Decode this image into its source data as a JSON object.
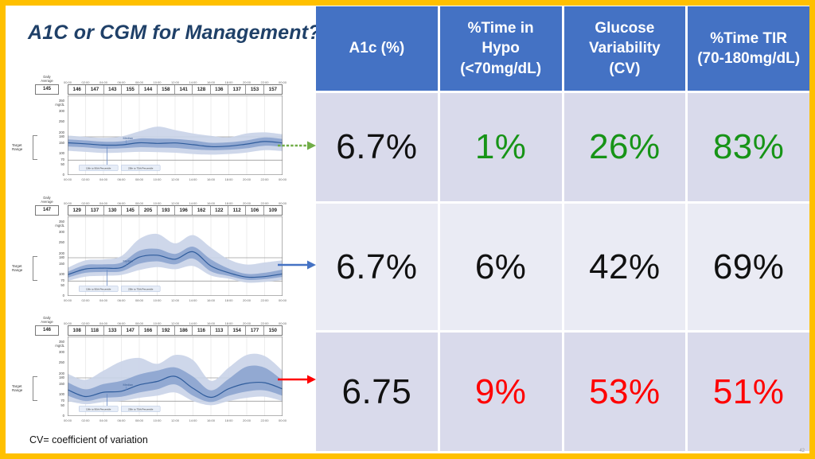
{
  "title": "A1C or CGM for Management?",
  "footnote": "CV= coefficient of variation",
  "slide_number": "42",
  "colors": {
    "border": "#FFC000",
    "title": "#1F4068",
    "header_bg": "#4472C4",
    "header_text": "#FFFFFF",
    "row_bg_a": "#D9DAEB",
    "row_bg_b": "#EAEBF4",
    "black": "#111111",
    "green": "#179417",
    "red": "#FF0000",
    "band_outer": "#C9D3E8",
    "band_inner": "#8EA6D1",
    "median_line": "#2F5C9C",
    "grid_line": "#DCDCDC",
    "frame_line": "#8A8A8A",
    "target_line": "#9B9B9B",
    "arrow_green": "#70AD47",
    "arrow_blue": "#4472C4",
    "arrow_red": "#FF0000"
  },
  "table": {
    "headers": [
      "A1c (%)",
      "%Time in Hypo (<70mg/dL)",
      "Glucose Variability (CV)",
      "%Time TIR (70-180mg/dL)"
    ],
    "rows": [
      {
        "cells": [
          {
            "value": "6.7%",
            "color": "black"
          },
          {
            "value": "1%",
            "color": "green"
          },
          {
            "value": "26%",
            "color": "green"
          },
          {
            "value": "83%",
            "color": "green"
          }
        ]
      },
      {
        "cells": [
          {
            "value": "6.7%",
            "color": "black"
          },
          {
            "value": "6%",
            "color": "black"
          },
          {
            "value": "42%",
            "color": "black"
          },
          {
            "value": "69%",
            "color": "black"
          }
        ]
      },
      {
        "cells": [
          {
            "value": "6.75",
            "color": "black"
          },
          {
            "value": "9%",
            "color": "red"
          },
          {
            "value": "53%",
            "color": "red"
          },
          {
            "value": "51%",
            "color": "red"
          }
        ]
      }
    ]
  },
  "chart_config": {
    "daily_average_label": "Daily Average",
    "target_label": "Target Range",
    "median_label": "Median",
    "unit": "mg/dL",
    "times": [
      "00:00",
      "02:00",
      "04:00",
      "06:00",
      "08:00",
      "10:00",
      "12:00",
      "14:00",
      "16:00",
      "18:00",
      "20:00",
      "22:00",
      "00:00"
    ],
    "yticks": [
      350,
      300,
      250,
      200,
      150,
      100,
      50,
      0
    ],
    "target_ticks": [
      180,
      70
    ],
    "ymax": 375,
    "legend": [
      "10th to 90th Percentile",
      "25th to 75th Percentile"
    ]
  },
  "chart_data": [
    {
      "type": "area",
      "name": "cgm-profile-1",
      "daily_average": "145",
      "hourly_averages": [
        "146",
        "147",
        "143",
        "155",
        "144",
        "158",
        "141",
        "128",
        "136",
        "137",
        "153",
        "157"
      ],
      "series": {
        "median": [
          152,
          147,
          141,
          142,
          152,
          149,
          151,
          143,
          134,
          136,
          146,
          158,
          151
        ],
        "p25": [
          134,
          130,
          124,
          126,
          131,
          129,
          128,
          121,
          117,
          119,
          126,
          138,
          133
        ],
        "p75": [
          168,
          163,
          157,
          159,
          172,
          171,
          170,
          163,
          152,
          154,
          163,
          177,
          170
        ],
        "p10": [
          114,
          109,
          104,
          106,
          109,
          108,
          105,
          99,
          96,
          99,
          106,
          117,
          113
        ],
        "p90": [
          186,
          180,
          175,
          182,
          206,
          228,
          212,
          196,
          185,
          178,
          196,
          201,
          192
        ]
      }
    },
    {
      "type": "area",
      "name": "cgm-profile-2",
      "daily_average": "147",
      "hourly_averages": [
        "129",
        "137",
        "130",
        "145",
        "205",
        "193",
        "196",
        "162",
        "122",
        "112",
        "106",
        "109"
      ],
      "series": {
        "median": [
          100,
          127,
          131,
          134,
          183,
          192,
          173,
          208,
          141,
          109,
          89,
          91,
          104
        ],
        "p25": [
          86,
          109,
          113,
          116,
          152,
          163,
          149,
          176,
          116,
          94,
          76,
          79,
          90
        ],
        "p75": [
          114,
          146,
          149,
          157,
          213,
          222,
          198,
          232,
          172,
          129,
          104,
          109,
          124
        ],
        "p10": [
          71,
          91,
          95,
          99,
          122,
          136,
          126,
          141,
          96,
          81,
          63,
          66,
          76
        ],
        "p90": [
          133,
          168,
          172,
          188,
          268,
          292,
          248,
          287,
          228,
          172,
          148,
          158,
          168
        ]
      }
    },
    {
      "type": "area",
      "name": "cgm-profile-3",
      "daily_average": "146",
      "hourly_averages": [
        "108",
        "118",
        "133",
        "147",
        "166",
        "192",
        "186",
        "116",
        "113",
        "154",
        "177",
        "150"
      ],
      "series": {
        "median": [
          124,
          92,
          112,
          117,
          147,
          163,
          187,
          131,
          88,
          129,
          154,
          157,
          128
        ],
        "p25": [
          96,
          71,
          86,
          91,
          111,
          126,
          149,
          96,
          66,
          96,
          116,
          121,
          96
        ],
        "p75": [
          159,
          126,
          151,
          166,
          196,
          214,
          229,
          186,
          121,
          176,
          233,
          228,
          168
        ],
        "p10": [
          71,
          56,
          66,
          71,
          86,
          96,
          111,
          71,
          51,
          71,
          86,
          91,
          71
        ],
        "p90": [
          199,
          171,
          214,
          258,
          274,
          246,
          288,
          264,
          166,
          229,
          288,
          283,
          214
        ]
      }
    }
  ],
  "arrows": [
    {
      "name": "arrow-green",
      "color_key": "arrow_green",
      "dashed": true
    },
    {
      "name": "arrow-blue",
      "color_key": "arrow_blue",
      "dashed": false
    },
    {
      "name": "arrow-red",
      "color_key": "arrow_red",
      "dashed": false
    }
  ]
}
